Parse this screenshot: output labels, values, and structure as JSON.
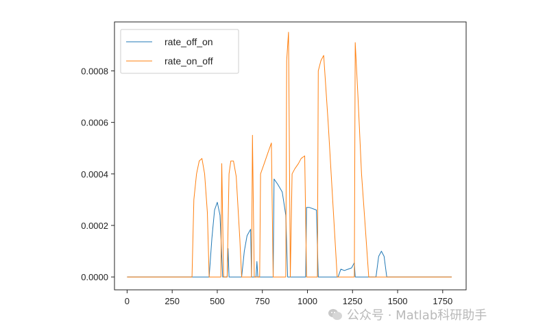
{
  "chart_data": {
    "type": "line",
    "xlim": [
      -70,
      1880
    ],
    "ylim": [
      -5e-05,
      0.00099
    ],
    "x_ticks": [
      0,
      250,
      500,
      750,
      1000,
      1250,
      1500,
      1750
    ],
    "x_tick_labels": [
      "0",
      "250",
      "500",
      "750",
      "1000",
      "1250",
      "1500",
      "1750"
    ],
    "y_ticks": [
      0.0,
      0.0002,
      0.0004,
      0.0006,
      0.0008
    ],
    "y_tick_labels": [
      "0.0000",
      "0.0002",
      "0.0004",
      "0.0006",
      "0.0008"
    ],
    "grid": false,
    "legend_position": "top-left",
    "series": [
      {
        "name": "rate_off_on",
        "color": "#1f77b4",
        "points": [
          [
            0,
            0
          ],
          [
            455,
            0
          ],
          [
            470,
            0.00015
          ],
          [
            485,
            0.00026
          ],
          [
            500,
            0.00029
          ],
          [
            515,
            0.00024
          ],
          [
            530,
            0
          ],
          [
            555,
            0
          ],
          [
            560,
            0.00011
          ],
          [
            565,
            0
          ],
          [
            635,
            0
          ],
          [
            650,
            0.0001
          ],
          [
            665,
            0.00016
          ],
          [
            685,
            0.000185
          ],
          [
            690,
            0
          ],
          [
            715,
            0
          ],
          [
            720,
            6e-05
          ],
          [
            725,
            0
          ],
          [
            810,
            0
          ],
          [
            815,
            0.00038
          ],
          [
            835,
            0.00036
          ],
          [
            860,
            0.00033
          ],
          [
            880,
            0.00024
          ],
          [
            890,
            0
          ],
          [
            990,
            0
          ],
          [
            995,
            0.00027
          ],
          [
            1010,
            0.00027
          ],
          [
            1050,
            0.00026
          ],
          [
            1060,
            0
          ],
          [
            1170,
            0
          ],
          [
            1185,
            3e-05
          ],
          [
            1205,
            2.5e-05
          ],
          [
            1225,
            3e-05
          ],
          [
            1245,
            3.5e-05
          ],
          [
            1260,
            5.5e-05
          ],
          [
            1265,
            0
          ],
          [
            1380,
            0
          ],
          [
            1395,
            8e-05
          ],
          [
            1410,
            0.0001
          ],
          [
            1425,
            8e-05
          ],
          [
            1440,
            0
          ],
          [
            1800,
            0
          ]
        ]
      },
      {
        "name": "rate_on_off",
        "color": "#ff7f0e",
        "points": [
          [
            0,
            0
          ],
          [
            360,
            0
          ],
          [
            370,
            0.0003
          ],
          [
            385,
            0.0004
          ],
          [
            400,
            0.00045
          ],
          [
            415,
            0.00046
          ],
          [
            430,
            0.0004
          ],
          [
            445,
            0.00025
          ],
          [
            455,
            0
          ],
          [
            520,
            0
          ],
          [
            525,
            0.00044
          ],
          [
            535,
            0
          ],
          [
            555,
            0
          ],
          [
            565,
            0.0004
          ],
          [
            575,
            0.00045
          ],
          [
            590,
            0.00045
          ],
          [
            605,
            0.00039
          ],
          [
            625,
            0.00015
          ],
          [
            635,
            0
          ],
          [
            690,
            0
          ],
          [
            695,
            0.00055
          ],
          [
            705,
            0
          ],
          [
            735,
            0
          ],
          [
            740,
            0.0004
          ],
          [
            760,
            0.00044
          ],
          [
            780,
            0.00048
          ],
          [
            800,
            0.00052
          ],
          [
            810,
            0
          ],
          [
            880,
            0
          ],
          [
            885,
            0.00084
          ],
          [
            895,
            0.00095
          ],
          [
            905,
            0
          ],
          [
            915,
            0.0004
          ],
          [
            930,
            0.00042
          ],
          [
            950,
            0.00044
          ],
          [
            965,
            0.00046
          ],
          [
            985,
            0.00047
          ],
          [
            995,
            0
          ],
          [
            1055,
            0
          ],
          [
            1060,
            0.0008
          ],
          [
            1075,
            0.00084
          ],
          [
            1090,
            0.00086
          ],
          [
            1115,
            0.0006
          ],
          [
            1140,
            0.0003
          ],
          [
            1165,
            0
          ],
          [
            1260,
            0
          ],
          [
            1265,
            0.00091
          ],
          [
            1280,
            0.0007
          ],
          [
            1300,
            0.0004
          ],
          [
            1320,
            0.0002
          ],
          [
            1340,
            0
          ],
          [
            1800,
            0
          ]
        ]
      }
    ]
  },
  "watermark": {
    "text": "公众号 · Matlab科研助手"
  }
}
